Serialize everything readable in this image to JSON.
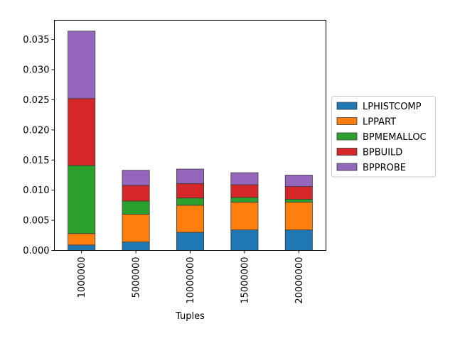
{
  "chart_data": {
    "type": "bar",
    "stacked": true,
    "title": "",
    "xlabel": "Tuples",
    "ylabel": "",
    "categories": [
      "1000000",
      "5000000",
      "10000000",
      "15000000",
      "20000000"
    ],
    "ylim": [
      0,
      0.0382
    ],
    "yticks": [
      0.0,
      0.005,
      0.01,
      0.015,
      0.02,
      0.025,
      0.03,
      0.035
    ],
    "ytick_labels": [
      "0.000",
      "0.005",
      "0.010",
      "0.015",
      "0.020",
      "0.025",
      "0.030",
      "0.035"
    ],
    "grid": false,
    "legend_position": "center-right outside",
    "series": [
      {
        "name": "LPHISTCOMP",
        "color": "#1f77b4",
        "values": [
          0.0009,
          0.0014,
          0.003,
          0.0034,
          0.0034
        ]
      },
      {
        "name": "LPPART",
        "color": "#ff7f0e",
        "values": [
          0.0019,
          0.0046,
          0.0045,
          0.0046,
          0.0046
        ]
      },
      {
        "name": "BPMEMALLOC",
        "color": "#2ca02c",
        "values": [
          0.0113,
          0.0022,
          0.0012,
          0.0008,
          0.0005
        ]
      },
      {
        "name": "BPBUILD",
        "color": "#d62728",
        "values": [
          0.0111,
          0.0026,
          0.0024,
          0.0021,
          0.0021
        ]
      },
      {
        "name": "BPPROBE",
        "color": "#9467bd",
        "values": [
          0.0112,
          0.0025,
          0.0024,
          0.002,
          0.0019
        ]
      }
    ]
  }
}
